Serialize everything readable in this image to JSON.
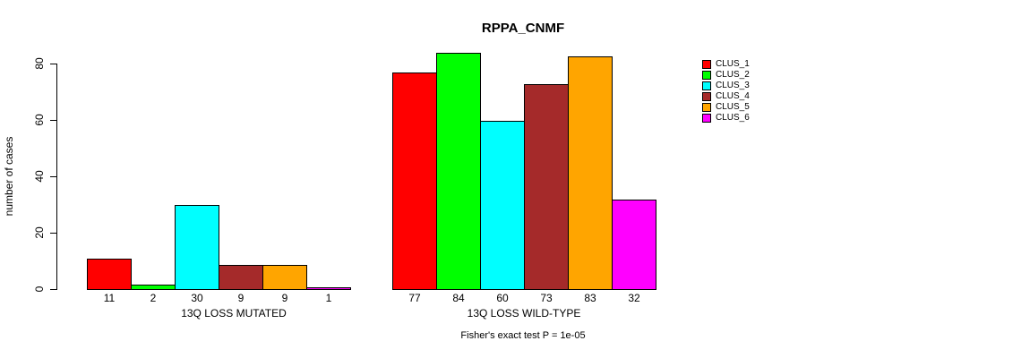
{
  "chart": {
    "title": "RPPA_CNMF",
    "y_label": "number of cases",
    "footnote": "Fisher's exact test P = 1e-05"
  },
  "chart_data": {
    "type": "bar",
    "title": "RPPA_CNMF",
    "xlabel": "",
    "ylabel": "number of cases",
    "ylim": [
      0,
      80
    ],
    "yticks": [
      0,
      20,
      40,
      60,
      80
    ],
    "grid": false,
    "legend_position": "right",
    "bar_value_labels": true,
    "categories": [
      "13Q LOSS MUTATED",
      "13Q LOSS WILD-TYPE"
    ],
    "series": [
      {
        "name": "CLUS_1",
        "color": "#FF0000",
        "values": [
          11,
          77
        ]
      },
      {
        "name": "CLUS_2",
        "color": "#00FF00",
        "values": [
          2,
          84
        ]
      },
      {
        "name": "CLUS_3",
        "color": "#00FFFF",
        "values": [
          30,
          60
        ]
      },
      {
        "name": "CLUS_4",
        "color": "#A52A2A",
        "values": [
          9,
          73
        ]
      },
      {
        "name": "CLUS_5",
        "color": "#FFA500",
        "values": [
          9,
          83
        ]
      },
      {
        "name": "CLUS_6",
        "color": "#FF00FF",
        "values": [
          1,
          32
        ]
      }
    ],
    "annotation": "Fisher's exact test P = 1e-05"
  }
}
